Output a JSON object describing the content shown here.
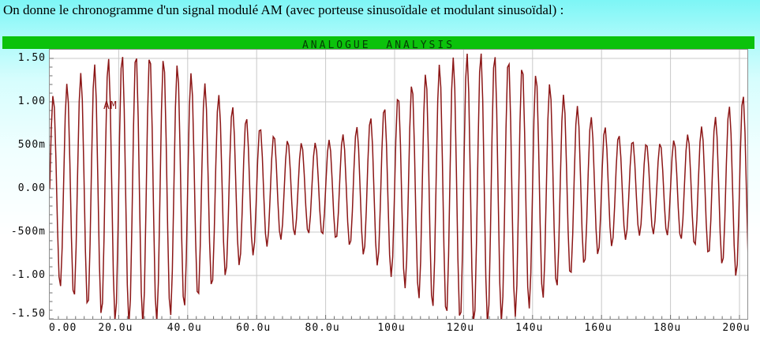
{
  "page": {
    "title": "On donne le chronogramme d'un signal modulé AM (avec porteuse sinusoïdale et modulant sinusoïdal) :"
  },
  "analysis_header": {
    "label": "ANALOGUE ANALYSIS"
  },
  "colors": {
    "bar_green": "#0bc20b",
    "bar_text": "#063a06",
    "trace": "#8c1717",
    "grid": "#c9c9c9",
    "tick": "#6e6e6e",
    "plot_border": "#8f8f8f",
    "axis_text": "#0a0a0a"
  },
  "chart_data": {
    "type": "line",
    "title": "ANALOGUE ANALYSIS",
    "series_label": "AM",
    "signal_model": "v(t) = A·(1 + m·sin(2π·t/Tm))·sin(2π·t/Tc)",
    "carrier_amplitude": 1.05,
    "modulation_index": 0.5,
    "carrier_period_us": 4,
    "modulation_period_us": 100,
    "envelope_max": 1.57,
    "envelope_min": 0.53,
    "t_start_us": 0,
    "t_end_us": 202.6,
    "sample_step_us": 0.45,
    "xlim_us": [
      0,
      202.6
    ],
    "ylim": [
      -1.5,
      1.6
    ],
    "x_major_step_us": 20,
    "x_minor_step_us": 2.5,
    "y_major_step": 0.5,
    "y_minor_step": 0.1,
    "grid": true,
    "x_ticks": [
      {
        "t_us": 0,
        "label": "0.00"
      },
      {
        "t_us": 20,
        "label": "20.0u"
      },
      {
        "t_us": 40,
        "label": "40.0u"
      },
      {
        "t_us": 60,
        "label": "60.0u"
      },
      {
        "t_us": 80,
        "label": "80.0u"
      },
      {
        "t_us": 100,
        "label": "100u"
      },
      {
        "t_us": 120,
        "label": "120u"
      },
      {
        "t_us": 140,
        "label": "140u"
      },
      {
        "t_us": 160,
        "label": "160u"
      },
      {
        "t_us": 180,
        "label": "180u"
      },
      {
        "t_us": 200,
        "label": "200u"
      }
    ],
    "y_ticks": [
      {
        "value": 1.5,
        "label": "1.50"
      },
      {
        "value": 1.0,
        "label": "1.00"
      },
      {
        "value": 0.5,
        "label": "500m"
      },
      {
        "value": 0.0,
        "label": "0.00"
      },
      {
        "value": -0.5,
        "label": "-500m"
      },
      {
        "value": -1.0,
        "label": "-1.00"
      },
      {
        "value": -1.5,
        "label": "-1.50"
      }
    ]
  }
}
